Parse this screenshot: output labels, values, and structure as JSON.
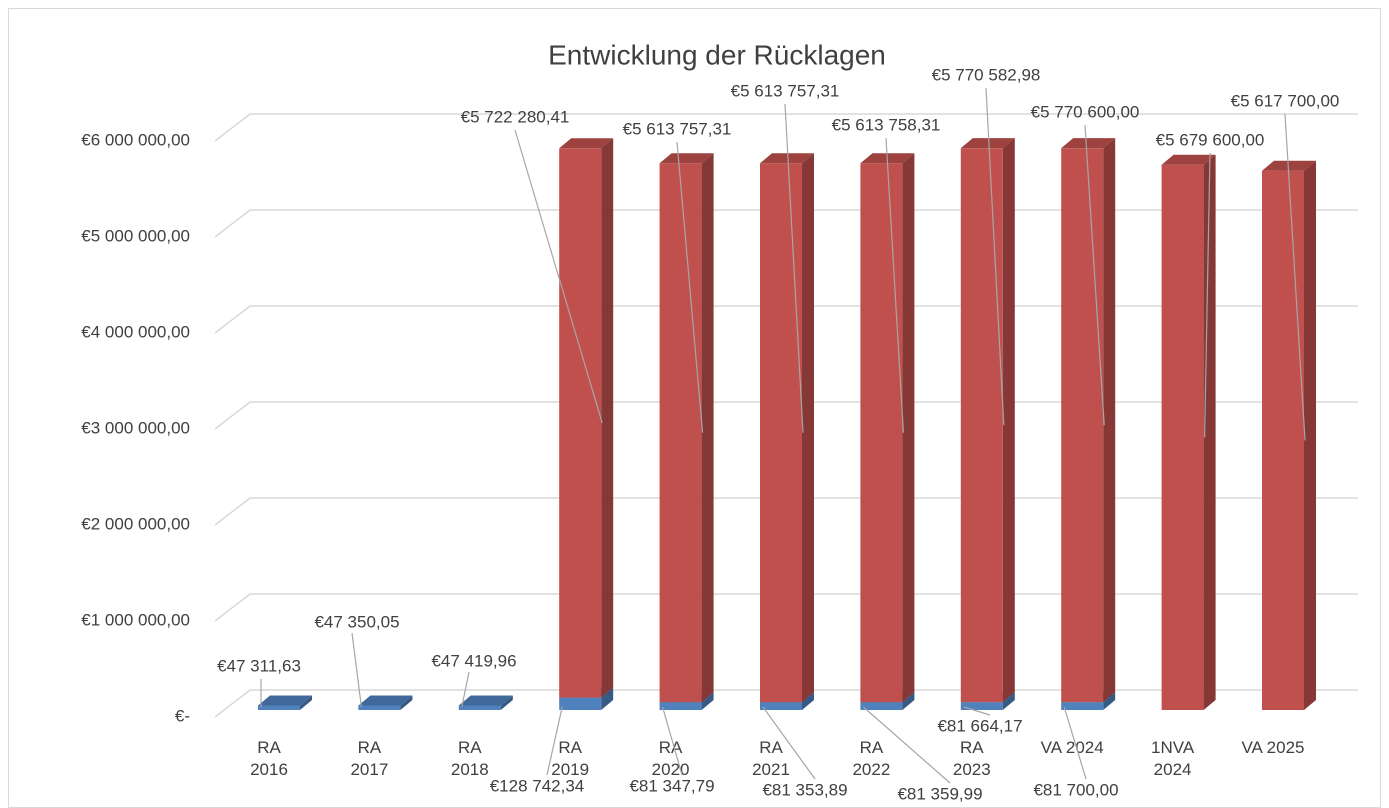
{
  "chart_data": {
    "type": "bar3d_stacked",
    "title": "Entwicklung der Rücklagen",
    "categories": [
      "RA 2016",
      "RA 2017",
      "RA 2018",
      "RA 2019",
      "RA 2020",
      "RA 2021",
      "RA 2022",
      "RA 2023",
      "VA 2024",
      "1NVA 2024",
      "VA 2025"
    ],
    "series": [
      {
        "color": "#4f81bd",
        "values": [
          47311.63,
          47350.05,
          47419.96,
          128742.34,
          81347.79,
          81353.89,
          81359.99,
          81664.17,
          81700.0,
          null,
          null
        ],
        "value_labels": [
          "€47 311,63",
          "€47 350,05",
          "€47 419,96",
          "€128 742,34",
          "€81 347,79",
          "€81 353,89",
          "€81 359,99",
          "€81 664,17",
          "€81 700,00",
          null,
          null
        ]
      },
      {
        "color": "#c0504d",
        "values": [
          null,
          null,
          null,
          5722280.41,
          5613757.31,
          5613757.31,
          5613758.31,
          5770582.98,
          5770600.0,
          5679600.0,
          5617700.0
        ],
        "value_labels": [
          null,
          null,
          null,
          "€5 722 280,41",
          "€5 613 757,31",
          "€5 613 757,31",
          "€5 613 758,31",
          "€5 770 582,98",
          "€5 770 600,00",
          "€5 679 600,00",
          "€5 617 700,00"
        ]
      }
    ],
    "ylim": [
      0,
      6000000
    ],
    "yticks": [
      {
        "value": 0,
        "label": "€-"
      },
      {
        "value": 1000000,
        "label": "€1 000 000,00"
      },
      {
        "value": 2000000,
        "label": "€2 000 000,00"
      },
      {
        "value": 3000000,
        "label": "€3 000 000,00"
      },
      {
        "value": 4000000,
        "label": "€4 000 000,00"
      },
      {
        "value": 5000000,
        "label": "€5 000 000,00"
      },
      {
        "value": 6000000,
        "label": "€6 000 000,00"
      }
    ],
    "grid": true
  }
}
